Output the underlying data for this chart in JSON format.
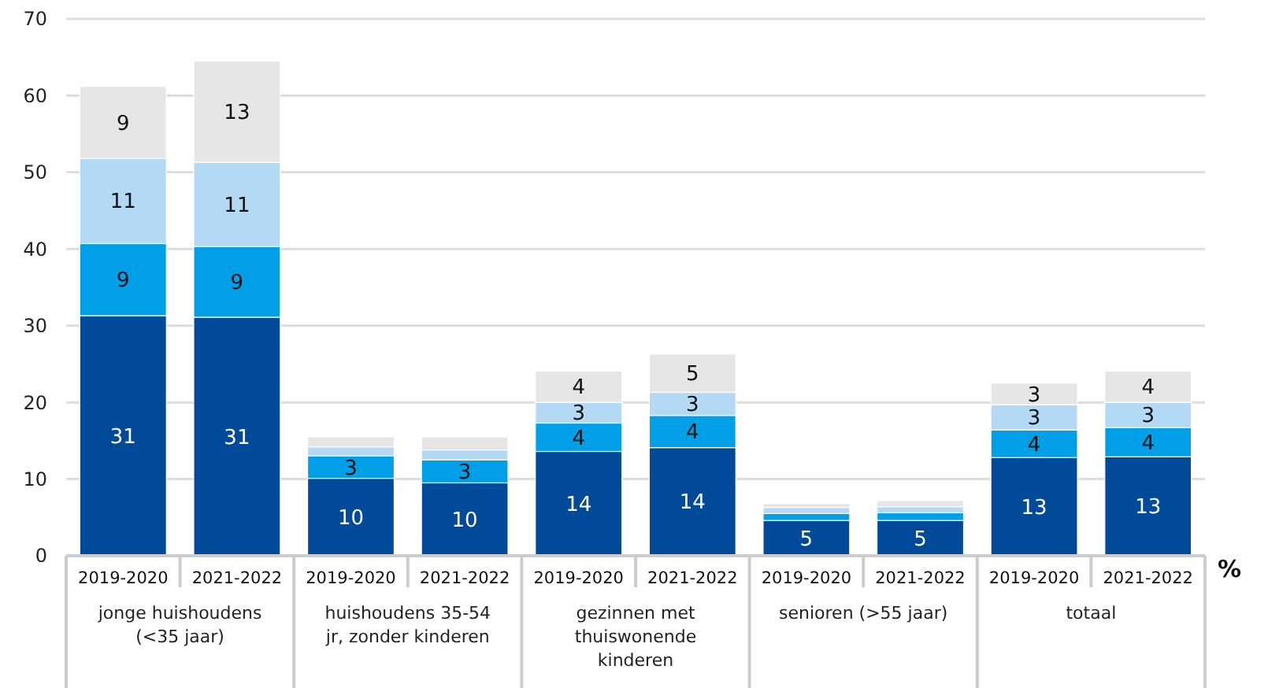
{
  "chart_data": {
    "type": "bar",
    "stacked": true,
    "ylabel": "%",
    "categories": [
      "2019-2020",
      "2021-2022",
      "2019-2020",
      "2021-2022",
      "2019-2020",
      "2021-2022",
      "2019-2020",
      "2021-2022",
      "2019-2020",
      "2021-2022"
    ],
    "annotations": [
      "jonge huishoudens (<35 jaar)",
      "huishoudens 35-54 jr, zonder kinderen",
      "gezinnen met thuiswonende kinderen",
      "senioren (>55 jaar)",
      "totaal"
    ],
    "series": [
      {
        "color": "#004a99",
        "values": [
          31.3,
          31.1,
          10.1,
          9.5,
          13.6,
          14.1,
          4.6,
          4.6,
          12.8,
          12.9
        ],
        "value_labels": [
          "31",
          "31",
          "10",
          "10",
          "14",
          "14",
          "5",
          "5",
          "13",
          "13"
        ]
      },
      {
        "color": "#009fe8",
        "values": [
          9.4,
          9.2,
          2.9,
          3.0,
          3.7,
          4.2,
          0.9,
          1.0,
          3.6,
          3.8
        ],
        "value_labels": [
          "9",
          "9",
          "3",
          "3",
          "4",
          "4",
          null,
          null,
          "4",
          "4"
        ]
      },
      {
        "color": "#b3d9f4",
        "values": [
          11.1,
          11.0,
          1.2,
          1.3,
          2.7,
          3.0,
          0.8,
          0.8,
          3.3,
          3.3
        ],
        "value_labels": [
          "11",
          "11",
          null,
          null,
          "3",
          "3",
          null,
          null,
          "3",
          "3"
        ]
      },
      {
        "color": "#e6e6e6",
        "values": [
          9.4,
          13.2,
          1.3,
          1.7,
          4.1,
          5.0,
          0.5,
          0.8,
          2.8,
          4.1
        ],
        "value_labels": [
          "9",
          "13",
          null,
          null,
          "4",
          "5",
          null,
          null,
          "3",
          "4"
        ]
      }
    ],
    "ylim": [
      0,
      70
    ],
    "yticks": [
      0,
      10,
      20,
      30,
      40,
      50,
      60,
      70
    ],
    "grid": "y"
  }
}
